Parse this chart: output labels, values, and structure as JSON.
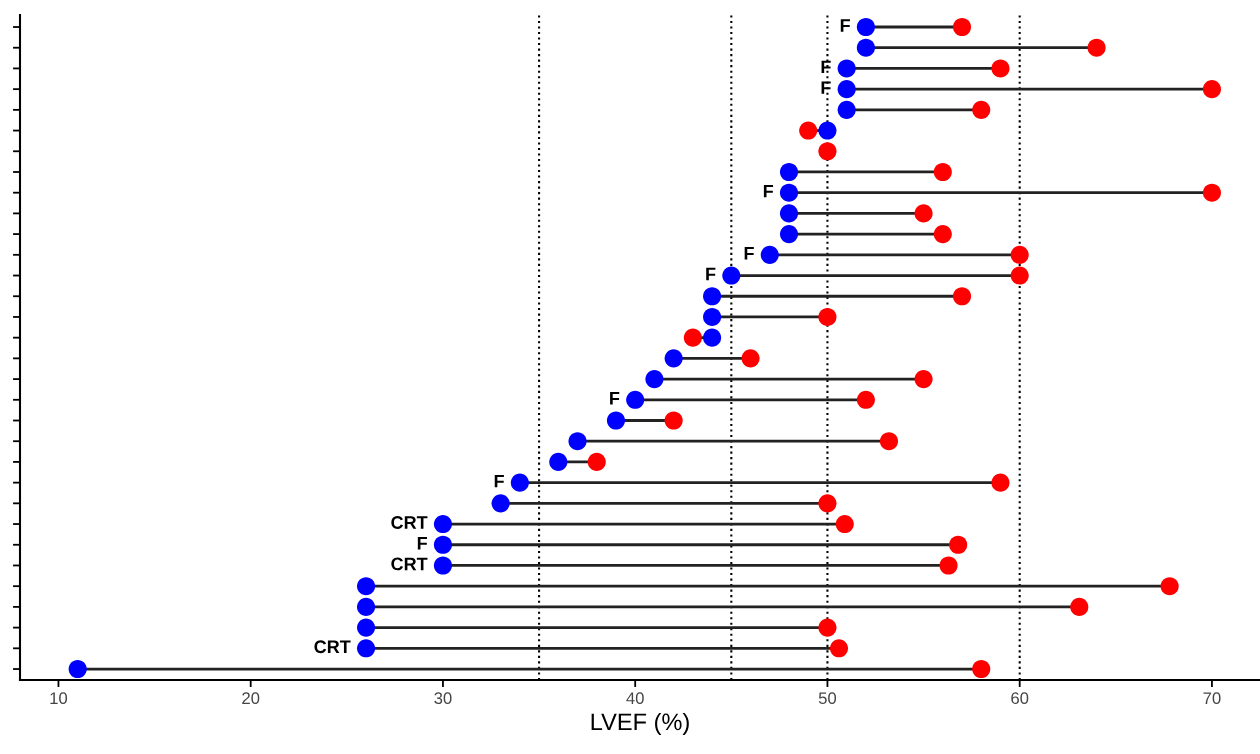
{
  "chart_data": {
    "type": "scatter",
    "orientation": "horizontal",
    "line_style": "solid",
    "xlabel": "LVEF (%)",
    "categories": [
      null,
      null,
      null,
      null,
      null,
      null,
      null,
      null,
      null,
      null,
      null,
      null,
      null,
      null,
      null,
      null,
      null,
      null,
      null,
      null,
      null,
      null,
      null,
      null,
      null,
      null,
      null,
      null,
      null,
      null,
      null,
      null
    ],
    "series": [
      {
        "color": "#ff0000",
        "values": [
          57,
          64,
          59,
          70,
          58,
          49,
          50,
          56,
          70,
          55,
          56,
          60,
          60,
          57,
          50,
          43,
          46,
          55,
          52,
          42,
          53.2,
          38,
          59,
          50,
          50.9,
          56.8,
          56.3,
          67.8,
          63.1,
          50,
          50.6,
          58
        ]
      },
      {
        "color": "#0000ff",
        "values": [
          52,
          52,
          51,
          51,
          51,
          50,
          null,
          48,
          48,
          48,
          48,
          47,
          45,
          44,
          44,
          44,
          42,
          41,
          40,
          39,
          37,
          36,
          34,
          33,
          30,
          30,
          30,
          26,
          26,
          26,
          26,
          11
        ],
        "value_labels": [
          "F",
          null,
          "F",
          "F",
          null,
          null,
          null,
          null,
          "F",
          null,
          null,
          "F",
          "F",
          null,
          null,
          null,
          null,
          null,
          "F",
          null,
          null,
          null,
          "F",
          null,
          "CRT",
          "F",
          "CRT",
          null,
          null,
          null,
          "CRT",
          null
        ]
      }
    ],
    "xlim": [
      8,
      72.5
    ],
    "xticks": [
      10,
      20,
      30,
      40,
      50,
      60,
      70
    ],
    "ref_lines": [
      {
        "axis": "x",
        "value": 35,
        "color": "#000000",
        "line_style": "dotted"
      },
      {
        "axis": "x",
        "value": 45,
        "color": "#000000",
        "line_style": "dotted"
      },
      {
        "axis": "x",
        "value": 50,
        "color": "#000000",
        "line_style": "dotted"
      },
      {
        "axis": "x",
        "value": 60,
        "color": "#000000",
        "line_style": "dotted"
      }
    ],
    "tick_labels": "x",
    "grid": false,
    "legend": false,
    "marker": "circle"
  }
}
